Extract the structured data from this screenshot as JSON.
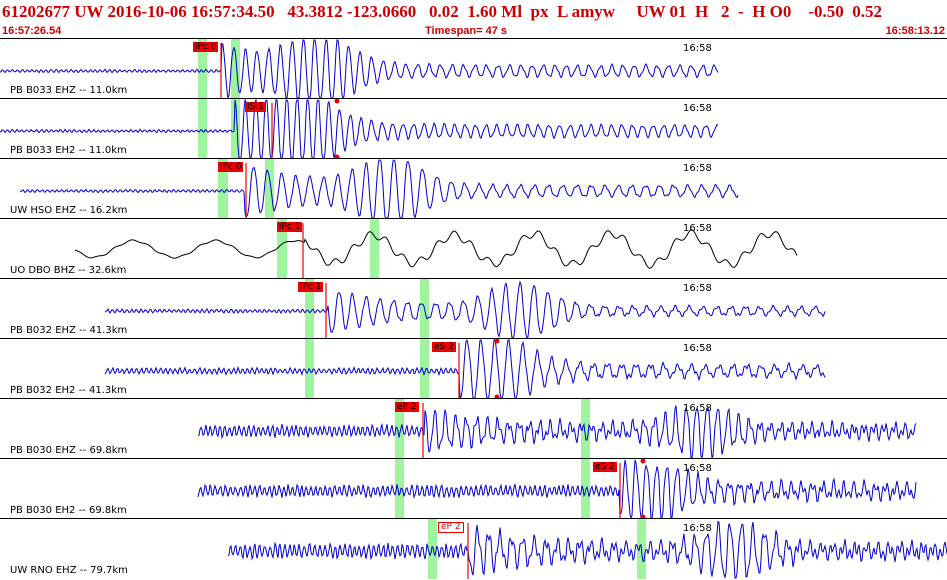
{
  "header": {
    "title": "61202677 UW 2016-10-06 16:57:34.50   43.3812 -123.0660   0.02  1.60 Ml  px  L amyw     UW 01  H   2  -  H O0    -0.50  0.52",
    "start_time": "16:57:26.54",
    "timespan": "Timespan=  47 s",
    "end_time": "16:58:13.12"
  },
  "colors": {
    "trace": "#0000cc",
    "trace_raw": "#000000",
    "pick_marker": "#ee0000",
    "window_bar": "#9ef59e",
    "header_text": "#cc0000"
  },
  "panels": [
    {
      "label": "PB B033 EHZ -- 11.0km",
      "time_label": "16:58",
      "picks": [
        {
          "label": "iPc 0"
        }
      ]
    },
    {
      "label": "PB B033 EH2 -- 11.0km",
      "time_label": "16:58",
      "picks": [
        {
          "label": "iS 1"
        }
      ]
    },
    {
      "label": "UW HSO EHZ -- 16.2km",
      "time_label": "16:58",
      "picks": [
        {
          "label": "iPc 0"
        }
      ]
    },
    {
      "label": "UO DBO BHZ -- 32.6km",
      "time_label": "16:58",
      "picks": [
        {
          "label": "iPc 1"
        }
      ]
    },
    {
      "label": "PB B032 EHZ -- 41.3km",
      "time_label": "16:58",
      "picks": [
        {
          "label": "iPc 1"
        }
      ]
    },
    {
      "label": "PB B032 EH2 -- 41.3km",
      "time_label": "16:58",
      "picks": [
        {
          "label": "eS 2"
        }
      ]
    },
    {
      "label": "PB B030 EHZ -- 69.8km",
      "time_label": "16:58",
      "picks": [
        {
          "label": "eP 2"
        }
      ]
    },
    {
      "label": "PB B030 EH2 -- 69.8km",
      "time_label": "16:58",
      "picks": [
        {
          "label": "eS 2"
        }
      ]
    },
    {
      "label": "UW RNO EHZ -- 79.7km",
      "time_label": "16:58",
      "picks": [
        {
          "label": "eP 2",
          "selected": true
        }
      ]
    }
  ]
}
